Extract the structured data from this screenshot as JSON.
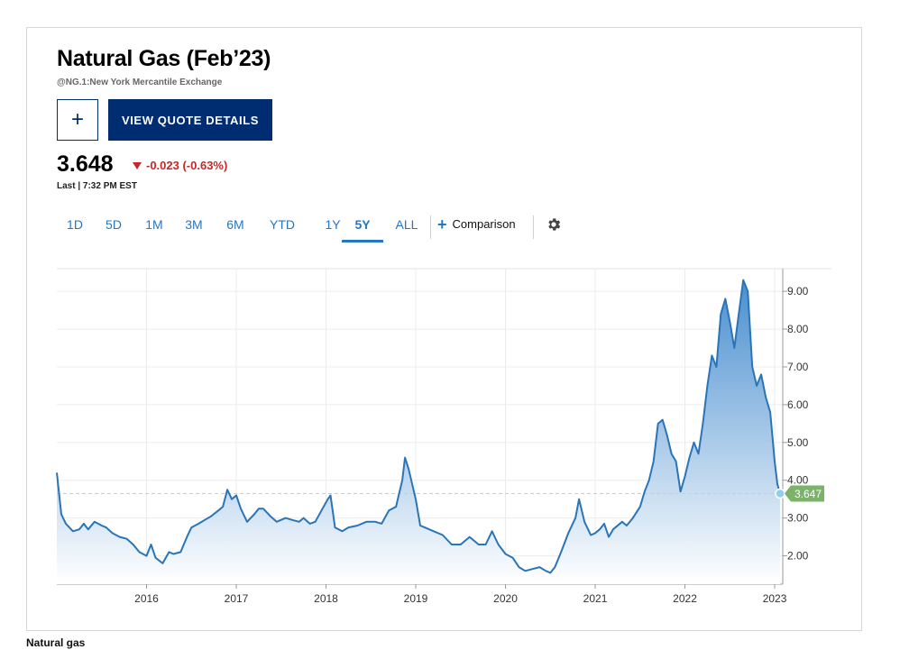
{
  "header": {
    "title": "Natural Gas (Feb’23)",
    "subtitle": "@NG.1:New York Mercantile Exchange",
    "add_button_label": "+",
    "quote_button_label": "VIEW QUOTE DETAILS",
    "price": "3.648",
    "change": "-0.023 (-0.63%)",
    "last_line": "Last | 7:32 PM EST"
  },
  "tabs": [
    {
      "label": "1D",
      "active": false
    },
    {
      "label": "5D",
      "active": false
    },
    {
      "label": "1M",
      "active": false
    },
    {
      "label": "3M",
      "active": false
    },
    {
      "label": "6M",
      "active": false
    },
    {
      "label": "YTD",
      "active": false
    },
    {
      "label": "1Y",
      "active": false
    },
    {
      "label": "5Y",
      "active": true
    },
    {
      "label": "ALL",
      "active": false
    }
  ],
  "comparison_label": "Comparison",
  "caption": "Natural gas",
  "colors": {
    "line": "#2a74b8",
    "area_top": "#4a8fd0",
    "area_bottom": "#ffffff",
    "last_marker": "#8fd0f0",
    "last_badge": "#7cb36a",
    "reference_line": "#b9dbb1",
    "down": "#c62828",
    "brand": "#002d72"
  },
  "chart_data": {
    "type": "area",
    "x_tick_labels": [
      "2016",
      "2017",
      "2018",
      "2019",
      "2020",
      "2021",
      "2022",
      "2023"
    ],
    "y_tick_labels": [
      "2.00",
      "3.00",
      "4.00",
      "5.00",
      "6.00",
      "7.00",
      "8.00",
      "9.00"
    ],
    "ylim": [
      1.25,
      9.6
    ],
    "xlim": [
      2015.0,
      2023.09
    ],
    "y_axis_position": "right",
    "grid": true,
    "last_value_label": "3.647",
    "last_value": 3.647,
    "series": [
      {
        "x": [
          2015.0,
          2015.05,
          2015.1,
          2015.18,
          2015.25,
          2015.3,
          2015.35,
          2015.42,
          2015.5,
          2015.55,
          2015.62,
          2015.7,
          2015.78,
          2015.85,
          2015.92,
          2016.0,
          2016.05,
          2016.1,
          2016.18,
          2016.25,
          2016.3,
          2016.38,
          2016.45,
          2016.5,
          2016.58,
          2016.65,
          2016.72,
          2016.8,
          2016.85,
          2016.9,
          2016.95,
          2017.0,
          2017.05,
          2017.12,
          2017.2,
          2017.25,
          2017.3,
          2017.38,
          2017.45,
          2017.55,
          2017.62,
          2017.7,
          2017.75,
          2017.82,
          2017.88,
          2017.95,
          2018.02,
          2018.05,
          2018.1,
          2018.18,
          2018.25,
          2018.35,
          2018.45,
          2018.55,
          2018.62,
          2018.7,
          2018.78,
          2018.85,
          2018.88,
          2018.92,
          2019.0,
          2019.05,
          2019.1,
          2019.2,
          2019.3,
          2019.4,
          2019.5,
          2019.6,
          2019.7,
          2019.78,
          2019.85,
          2019.92,
          2020.0,
          2020.08,
          2020.15,
          2020.22,
          2020.3,
          2020.38,
          2020.45,
          2020.5,
          2020.55,
          2020.62,
          2020.7,
          2020.78,
          2020.82,
          2020.88,
          2020.95,
          2021.0,
          2021.05,
          2021.1,
          2021.15,
          2021.2,
          2021.3,
          2021.35,
          2021.42,
          2021.5,
          2021.55,
          2021.6,
          2021.65,
          2021.7,
          2021.75,
          2021.8,
          2021.85,
          2021.9,
          2021.95,
          2022.0,
          2022.05,
          2022.1,
          2022.15,
          2022.2,
          2022.25,
          2022.3,
          2022.35,
          2022.4,
          2022.45,
          2022.5,
          2022.55,
          2022.6,
          2022.65,
          2022.7,
          2022.75,
          2022.8,
          2022.85,
          2022.9,
          2022.95,
          2023.0,
          2023.03,
          2023.06
        ],
        "y": [
          4.2,
          3.1,
          2.85,
          2.65,
          2.7,
          2.85,
          2.7,
          2.9,
          2.8,
          2.75,
          2.6,
          2.5,
          2.45,
          2.3,
          2.1,
          2.0,
          2.3,
          1.95,
          1.8,
          2.1,
          2.05,
          2.1,
          2.5,
          2.75,
          2.85,
          2.95,
          3.05,
          3.2,
          3.3,
          3.75,
          3.5,
          3.6,
          3.25,
          2.9,
          3.1,
          3.25,
          3.25,
          3.05,
          2.9,
          3.0,
          2.95,
          2.9,
          3.0,
          2.85,
          2.9,
          3.2,
          3.5,
          3.6,
          2.75,
          2.65,
          2.75,
          2.8,
          2.9,
          2.9,
          2.85,
          3.2,
          3.3,
          4.0,
          4.6,
          4.3,
          3.5,
          2.8,
          2.75,
          2.65,
          2.55,
          2.3,
          2.3,
          2.5,
          2.3,
          2.3,
          2.65,
          2.3,
          2.05,
          1.95,
          1.7,
          1.6,
          1.65,
          1.7,
          1.6,
          1.55,
          1.7,
          2.1,
          2.6,
          3.0,
          3.5,
          2.9,
          2.55,
          2.6,
          2.7,
          2.85,
          2.5,
          2.7,
          2.9,
          2.8,
          3.0,
          3.3,
          3.7,
          4.0,
          4.5,
          5.5,
          5.6,
          5.2,
          4.7,
          4.5,
          3.7,
          4.1,
          4.6,
          5.0,
          4.7,
          5.5,
          6.5,
          7.3,
          7.0,
          8.4,
          8.8,
          8.2,
          7.5,
          8.4,
          9.3,
          9.0,
          7.0,
          6.5,
          6.8,
          6.2,
          5.8,
          4.5,
          3.9,
          3.647
        ]
      }
    ]
  }
}
